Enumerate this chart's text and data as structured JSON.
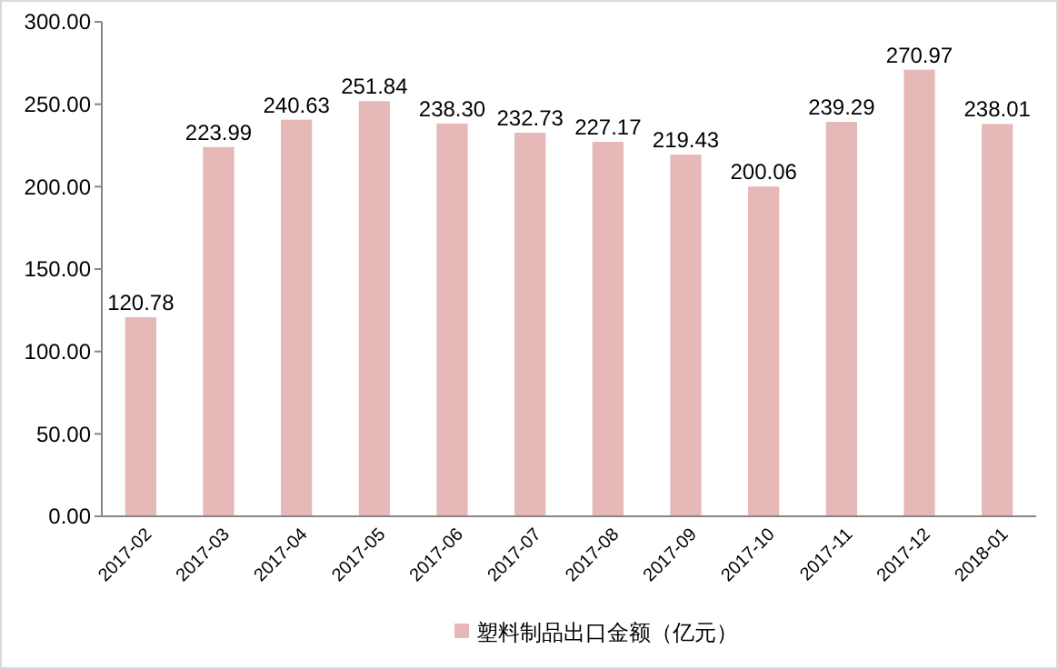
{
  "chart_data": {
    "type": "bar",
    "categories": [
      "2017-02",
      "2017-03",
      "2017-04",
      "2017-05",
      "2017-06",
      "2017-07",
      "2017-08",
      "2017-09",
      "2017-10",
      "2017-11",
      "2017-12",
      "2018-01"
    ],
    "series": [
      {
        "name": "塑料制品出口金额（亿元）",
        "color": "#e6b8b7",
        "values": [
          120.78,
          223.99,
          240.63,
          251.84,
          238.3,
          232.73,
          227.17,
          219.43,
          200.06,
          239.29,
          270.97,
          238.01
        ]
      }
    ],
    "value_labels": [
      "120.78",
      "223.99",
      "240.63",
      "251.84",
      "238.30",
      "232.73",
      "227.17",
      "219.43",
      "200.06",
      "239.29",
      "270.97",
      "238.01"
    ],
    "ylim": [
      0,
      300
    ],
    "yticks": [
      {
        "value": 0,
        "label": "0.00"
      },
      {
        "value": 50,
        "label": "50.00"
      },
      {
        "value": 100,
        "label": "100.00"
      },
      {
        "value": 150,
        "label": "150.00"
      },
      {
        "value": 200,
        "label": "200.00"
      },
      {
        "value": 250,
        "label": "250.00"
      },
      {
        "value": 300,
        "label": "300.00"
      }
    ],
    "legend": "bottom"
  }
}
